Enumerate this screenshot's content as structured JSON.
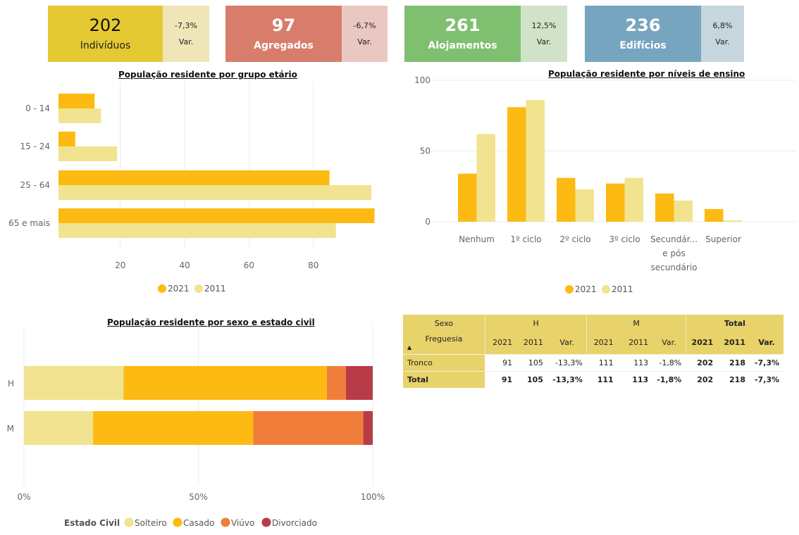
{
  "kpis": [
    {
      "value": "202",
      "label": "Indivíduos",
      "var": "-7,3%",
      "var_label": "Var.",
      "color": "#e5c932",
      "var_color": "#efe5b7",
      "text": "dark"
    },
    {
      "value": "97",
      "label": "Agregados",
      "var": "-6,7%",
      "var_label": "Var.",
      "color": "#d87d6c",
      "var_color": "#ebc7c1",
      "text": "light"
    },
    {
      "value": "261",
      "label": "Alojamentos",
      "var": "12,5%",
      "var_label": "Var.",
      "color": "#7fbf70",
      "var_color": "#d0e3c9",
      "text": "light"
    },
    {
      "value": "236",
      "label": "Edifícios",
      "var": "6,8%",
      "var_label": "Var.",
      "color": "#77a5bf",
      "var_color": "#c6d5de",
      "text": "light"
    }
  ],
  "colors": {
    "y2021": "#fdba12",
    "y2011": "#f1e38f",
    "solteiro": "#f1e38f",
    "casado": "#fdba12",
    "viuvo": "#f07e3a",
    "divorciado": "#b83c48",
    "table_header": "#e8d26a"
  },
  "chart_data": [
    {
      "id": "age",
      "type": "bar",
      "orientation": "horizontal",
      "title": "População residente por grupo etário",
      "categories": [
        "0 - 14",
        "15 - 24",
        "25 - 64",
        "65 e mais"
      ],
      "series": [
        {
          "name": "2021",
          "values": [
            12,
            6,
            85,
            99
          ]
        },
        {
          "name": "2011",
          "values": [
            14,
            19,
            98,
            87
          ]
        }
      ],
      "xticks": [
        20,
        40,
        60,
        80
      ],
      "xlim": [
        0,
        99
      ],
      "grid": true,
      "legend": [
        "2021",
        "2011"
      ],
      "legend_position": "bottom"
    },
    {
      "id": "education",
      "type": "bar",
      "orientation": "vertical",
      "title": "População residente por níveis de ensino",
      "categories": [
        "Nenhum",
        "1º ciclo",
        "2º ciclo",
        "3º ciclo",
        "Secundár... e pós secundário",
        "Superior"
      ],
      "category_label_lines": [
        [
          "Nenhum"
        ],
        [
          "1º ciclo"
        ],
        [
          "2º ciclo"
        ],
        [
          "3º ciclo"
        ],
        [
          "Secundár...",
          "e pós",
          "secundário"
        ],
        [
          "Superior"
        ]
      ],
      "series": [
        {
          "name": "2021",
          "values": [
            34,
            81,
            31,
            27,
            20,
            9
          ]
        },
        {
          "name": "2011",
          "values": [
            62,
            86,
            23,
            31,
            15,
            1
          ]
        }
      ],
      "yticks": [
        0,
        50,
        100
      ],
      "ylim": [
        0,
        100
      ],
      "grid": true,
      "legend": [
        "2021",
        "2011"
      ],
      "legend_position": "bottom"
    },
    {
      "id": "marital",
      "type": "bar",
      "orientation": "horizontal",
      "stacked": "100%",
      "title": "População residente por sexo e estado civil",
      "categories": [
        "H",
        "M"
      ],
      "series": [
        {
          "name": "Solteiro",
          "values": [
            26,
            22
          ]
        },
        {
          "name": "Casado",
          "values": [
            53,
            51
          ]
        },
        {
          "name": "Viúvo",
          "values": [
            5,
            35
          ]
        },
        {
          "name": "Divorciado",
          "values": [
            7,
            3
          ]
        }
      ],
      "xticks": [
        "0%",
        "50%",
        "100%"
      ],
      "xlim": [
        0,
        100
      ],
      "grid": true,
      "legend_title": "Estado Civil",
      "legend": [
        "Solteiro",
        "Casado",
        "Viúvo",
        "Divorciado"
      ],
      "legend_position": "bottom"
    },
    {
      "id": "matrix",
      "type": "table",
      "row_header_top": "Sexo",
      "row_header": "Freguesia",
      "groups": [
        "H",
        "M",
        "Total"
      ],
      "columns": [
        "2021",
        "2011",
        "Var."
      ],
      "rows": [
        {
          "label": "Tronco",
          "values": [
            "91",
            "105",
            "-13,3%",
            "111",
            "113",
            "-1,8%",
            "202",
            "218",
            "-7,3%"
          ]
        },
        {
          "label": "Total",
          "values": [
            "91",
            "105",
            "-13,3%",
            "111",
            "113",
            "-1,8%",
            "202",
            "218",
            "-7,3%"
          ]
        }
      ]
    }
  ]
}
